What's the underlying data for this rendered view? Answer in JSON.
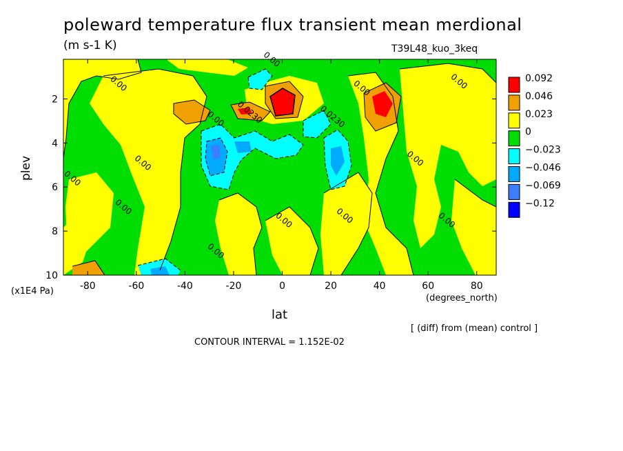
{
  "header": {
    "title": "poleward temperature flux transient mean merdional",
    "units": "(m s-1 K)",
    "run": "T39L48_kuo_3keq"
  },
  "footer": {
    "x_unit": "(degrees_north)",
    "y_unit": "(x1E4 Pa)",
    "diff_note": "[ (diff) from (mean) control ]",
    "contour_interval": "CONTOUR INTERVAL = 1.152E-02"
  },
  "chart_data": {
    "type": "heatmap",
    "title": "poleward temperature flux transient mean merdional",
    "xlabel": "lat",
    "ylabel": "plev",
    "xlim": [
      -90,
      88
    ],
    "ylim": [
      10,
      0.2
    ],
    "x_ticks": [
      -80,
      -60,
      -40,
      -20,
      0,
      20,
      40,
      60,
      80
    ],
    "y_ticks": [
      2,
      4,
      6,
      8,
      10
    ],
    "colorbar": {
      "labels": [
        "0.092",
        "0.046",
        "0.023",
        "0",
        "−0.023",
        "−0.046",
        "−0.069",
        "−0.12"
      ],
      "colors": [
        "#ff0000",
        "#f0a000",
        "#ffff00",
        "#00dd00",
        "#00ffff",
        "#00aaff",
        "#3d7dff",
        "#0000ff"
      ]
    },
    "contour_labels": [
      {
        "text": "0.00",
        "lat": -68,
        "plev": 1.4
      },
      {
        "text": "0.00",
        "lat": -58,
        "plev": 5.0
      },
      {
        "text": "0.00",
        "lat": -87,
        "plev": 5.7
      },
      {
        "text": "0.00",
        "lat": -66,
        "plev": 7.0
      },
      {
        "text": "0.00",
        "lat": -28,
        "plev": 3.0
      },
      {
        "text": "0.00",
        "lat": -28,
        "plev": 9.0
      },
      {
        "text": "0.00",
        "lat": -5,
        "plev": 0.3
      },
      {
        "text": "0.00",
        "lat": 0,
        "plev": 7.6
      },
      {
        "text": "0.00",
        "lat": 32,
        "plev": 1.6
      },
      {
        "text": "0.00",
        "lat": 25,
        "plev": 7.4
      },
      {
        "text": "0.00",
        "lat": 54,
        "plev": 4.8
      },
      {
        "text": "0.00",
        "lat": 72,
        "plev": 1.3
      },
      {
        "text": "0.00",
        "lat": 67,
        "plev": 7.6
      },
      {
        "text": "0.0230",
        "lat": -14,
        "plev": 2.7
      },
      {
        "text": "0.0230",
        "lat": 20,
        "plev": 2.9
      }
    ],
    "grid": false
  }
}
